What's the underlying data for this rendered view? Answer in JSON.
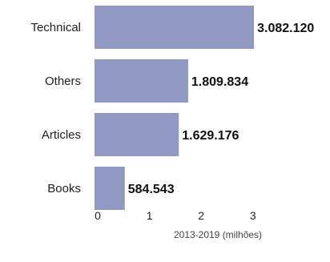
{
  "chart_data": {
    "type": "bar",
    "orientation": "horizontal",
    "categories": [
      "Technical",
      "Others",
      "Articles",
      "Books"
    ],
    "values": [
      3.08212,
      1.809834,
      1.629176,
      0.584543
    ],
    "value_labels": [
      "3.082.120",
      "1.809.834",
      "1.629.176",
      "584.543"
    ],
    "xlabel": "2013-2019 (milhões)",
    "xticks": [
      "0",
      "1",
      "2",
      "3"
    ],
    "xlim": [
      0,
      3.3
    ],
    "bar_color": "#8f99c3",
    "grid": false,
    "legend": "none"
  }
}
